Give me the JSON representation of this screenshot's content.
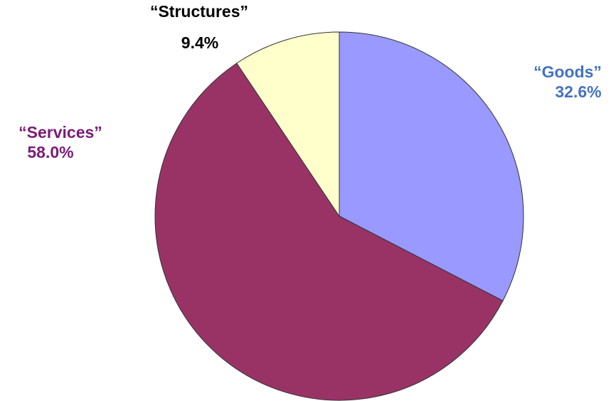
{
  "chart_data": {
    "type": "pie",
    "slices": [
      {
        "label": "“Goods”",
        "value": 32.6,
        "value_label": "32.6%",
        "color": "#9999ff",
        "label_color": "#4472c4"
      },
      {
        "label": "“Services”",
        "value": 58.0,
        "value_label": "58.0%",
        "color": "#993366",
        "label_color": "#7b1b78"
      },
      {
        "label": "“Structures”",
        "value": 9.4,
        "value_label": "9.4%",
        "color": "#ffffcc",
        "label_color": "#000000"
      }
    ],
    "start_angle_deg": 0,
    "direction": "clockwise",
    "legend": "none"
  }
}
